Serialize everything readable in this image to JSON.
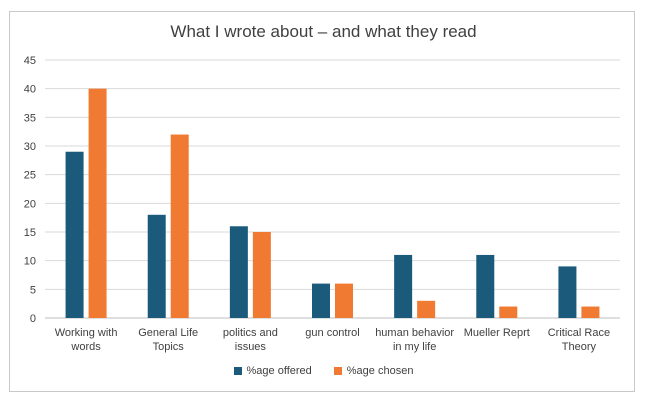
{
  "chart_data": {
    "type": "bar",
    "title": "What I wrote about – and what they read",
    "categories": [
      [
        "Working with",
        "words"
      ],
      [
        "General Life",
        "Topics"
      ],
      [
        "politics and",
        "issues"
      ],
      [
        "gun control"
      ],
      [
        "human behavior",
        "in my life"
      ],
      [
        "Mueller Reprt"
      ],
      [
        "Critical Race",
        "Theory"
      ]
    ],
    "series": [
      {
        "name": "%age offered",
        "color": "#1b5a7a",
        "values": [
          29,
          18,
          16,
          6,
          11,
          11,
          9
        ]
      },
      {
        "name": "%age chosen",
        "color": "#f07a32",
        "values": [
          40,
          32,
          15,
          6,
          3,
          2,
          2
        ]
      }
    ],
    "ylim": [
      0,
      45
    ],
    "yticks": [
      0,
      5,
      10,
      15,
      20,
      25,
      30,
      35,
      40,
      45
    ],
    "grid": true,
    "legend_position": "bottom"
  }
}
